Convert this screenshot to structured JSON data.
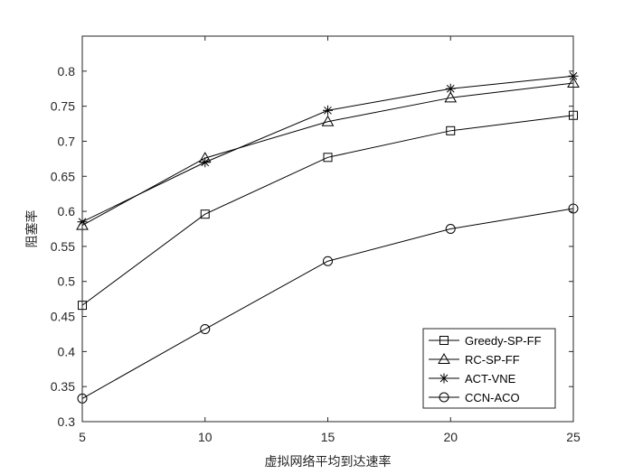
{
  "chart_data": {
    "type": "line",
    "title": "",
    "xlabel": "虚拟网络平均到达速率",
    "ylabel": "阻塞率",
    "x": [
      5,
      10,
      15,
      20,
      25
    ],
    "xlim": [
      5,
      25
    ],
    "ylim": [
      0.3,
      0.85
    ],
    "xticks": [
      5,
      10,
      15,
      20,
      25
    ],
    "yticks": [
      0.3,
      0.35,
      0.4,
      0.45,
      0.5,
      0.55,
      0.6,
      0.65,
      0.7,
      0.75,
      0.8
    ],
    "grid": false,
    "legend_position": "bottom-right",
    "series": [
      {
        "name": "Greedy-SP-FF",
        "marker": "square",
        "values": [
          0.466,
          0.596,
          0.677,
          0.715,
          0.737
        ]
      },
      {
        "name": "RC-SP-FF",
        "marker": "triangle",
        "values": [
          0.58,
          0.676,
          0.728,
          0.762,
          0.783
        ]
      },
      {
        "name": "ACT-VNE",
        "marker": "asterisk",
        "values": [
          0.585,
          0.67,
          0.744,
          0.775,
          0.793
        ]
      },
      {
        "name": "CCN-ACO",
        "marker": "circle",
        "values": [
          0.333,
          0.432,
          0.529,
          0.575,
          0.604
        ]
      }
    ],
    "colors": {
      "line": "#000000",
      "axis": "#262626",
      "background": "#ffffff"
    }
  }
}
